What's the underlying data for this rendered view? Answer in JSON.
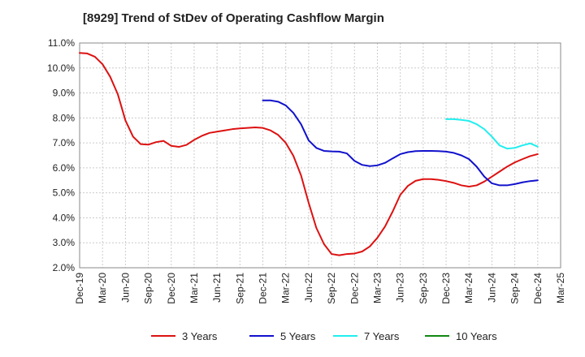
{
  "chart_data": {
    "type": "line",
    "title": "[8929]  Trend of StDev of Operating Cashflow Margin",
    "xlabel": "",
    "ylabel": "",
    "y_tick_labels": [
      "2.0%",
      "3.0%",
      "4.0%",
      "5.0%",
      "6.0%",
      "7.0%",
      "8.0%",
      "9.0%",
      "10.0%",
      "11.0%"
    ],
    "y_ticks": [
      2,
      3,
      4,
      5,
      6,
      7,
      8,
      9,
      10,
      11
    ],
    "ylim": [
      2,
      11
    ],
    "x_tick_labels": [
      "Dec-19",
      "Mar-20",
      "Jun-20",
      "Sep-20",
      "Dec-20",
      "Mar-21",
      "Jun-21",
      "Sep-21",
      "Dec-21",
      "Mar-22",
      "Jun-22",
      "Sep-22",
      "Dec-22",
      "Mar-23",
      "Jun-23",
      "Sep-23",
      "Dec-23",
      "Mar-24",
      "Jun-24",
      "Sep-24",
      "Dec-24",
      "Mar-25"
    ],
    "x_unit": "month index from Dec-19",
    "xlim": [
      0,
      63
    ],
    "grid": true,
    "legend_position": "bottom",
    "series": [
      {
        "name": "3 Years",
        "color": "#dd1111",
        "x": [
          0,
          1,
          2,
          3,
          4,
          5,
          6,
          7,
          8,
          9,
          10,
          11,
          12,
          13,
          14,
          15,
          16,
          17,
          18,
          19,
          20,
          21,
          22,
          23,
          24,
          25,
          26,
          27,
          28,
          29,
          30,
          31,
          32,
          33,
          34,
          35,
          36,
          37,
          38,
          39,
          40,
          41,
          42,
          43,
          44,
          45,
          46,
          47,
          48,
          49,
          50,
          51,
          52,
          53,
          54,
          55,
          56,
          57,
          58,
          59,
          60
        ],
        "values": [
          10.6,
          10.58,
          10.45,
          10.15,
          9.65,
          8.95,
          7.9,
          7.25,
          6.95,
          6.93,
          7.03,
          7.08,
          6.88,
          6.84,
          6.92,
          7.12,
          7.28,
          7.4,
          7.45,
          7.5,
          7.55,
          7.58,
          7.6,
          7.62,
          7.6,
          7.5,
          7.32,
          7.0,
          6.48,
          5.7,
          4.6,
          3.6,
          2.95,
          2.55,
          2.5,
          2.55,
          2.57,
          2.65,
          2.85,
          3.2,
          3.65,
          4.25,
          4.92,
          5.28,
          5.48,
          5.55,
          5.55,
          5.52,
          5.47,
          5.4,
          5.3,
          5.25,
          5.3,
          5.45,
          5.65,
          5.85,
          6.05,
          6.22,
          6.35,
          6.47,
          6.55
        ]
      },
      {
        "name": "5 Years",
        "color": "#1111cc",
        "x": [
          24,
          25,
          26,
          27,
          28,
          29,
          30,
          31,
          32,
          33,
          34,
          35,
          36,
          37,
          38,
          39,
          40,
          41,
          42,
          43,
          44,
          45,
          46,
          47,
          48,
          49,
          50,
          51,
          52,
          53,
          54,
          55,
          56,
          57,
          58,
          59,
          60
        ],
        "values": [
          8.7,
          8.7,
          8.65,
          8.5,
          8.2,
          7.75,
          7.1,
          6.8,
          6.68,
          6.66,
          6.65,
          6.58,
          6.28,
          6.12,
          6.07,
          6.1,
          6.2,
          6.38,
          6.55,
          6.63,
          6.67,
          6.68,
          6.68,
          6.67,
          6.65,
          6.6,
          6.5,
          6.35,
          6.05,
          5.65,
          5.38,
          5.3,
          5.3,
          5.35,
          5.42,
          5.47,
          5.5
        ]
      },
      {
        "name": "7 Years",
        "color": "#22eeee",
        "x": [
          48,
          49,
          50,
          51,
          52,
          53,
          54,
          55,
          56,
          57,
          58,
          59,
          60
        ],
        "values": [
          7.95,
          7.95,
          7.92,
          7.88,
          7.75,
          7.55,
          7.25,
          6.9,
          6.77,
          6.8,
          6.9,
          6.98,
          6.85
        ]
      },
      {
        "name": "10 Years",
        "color": "#118811",
        "x": [],
        "values": []
      }
    ]
  }
}
